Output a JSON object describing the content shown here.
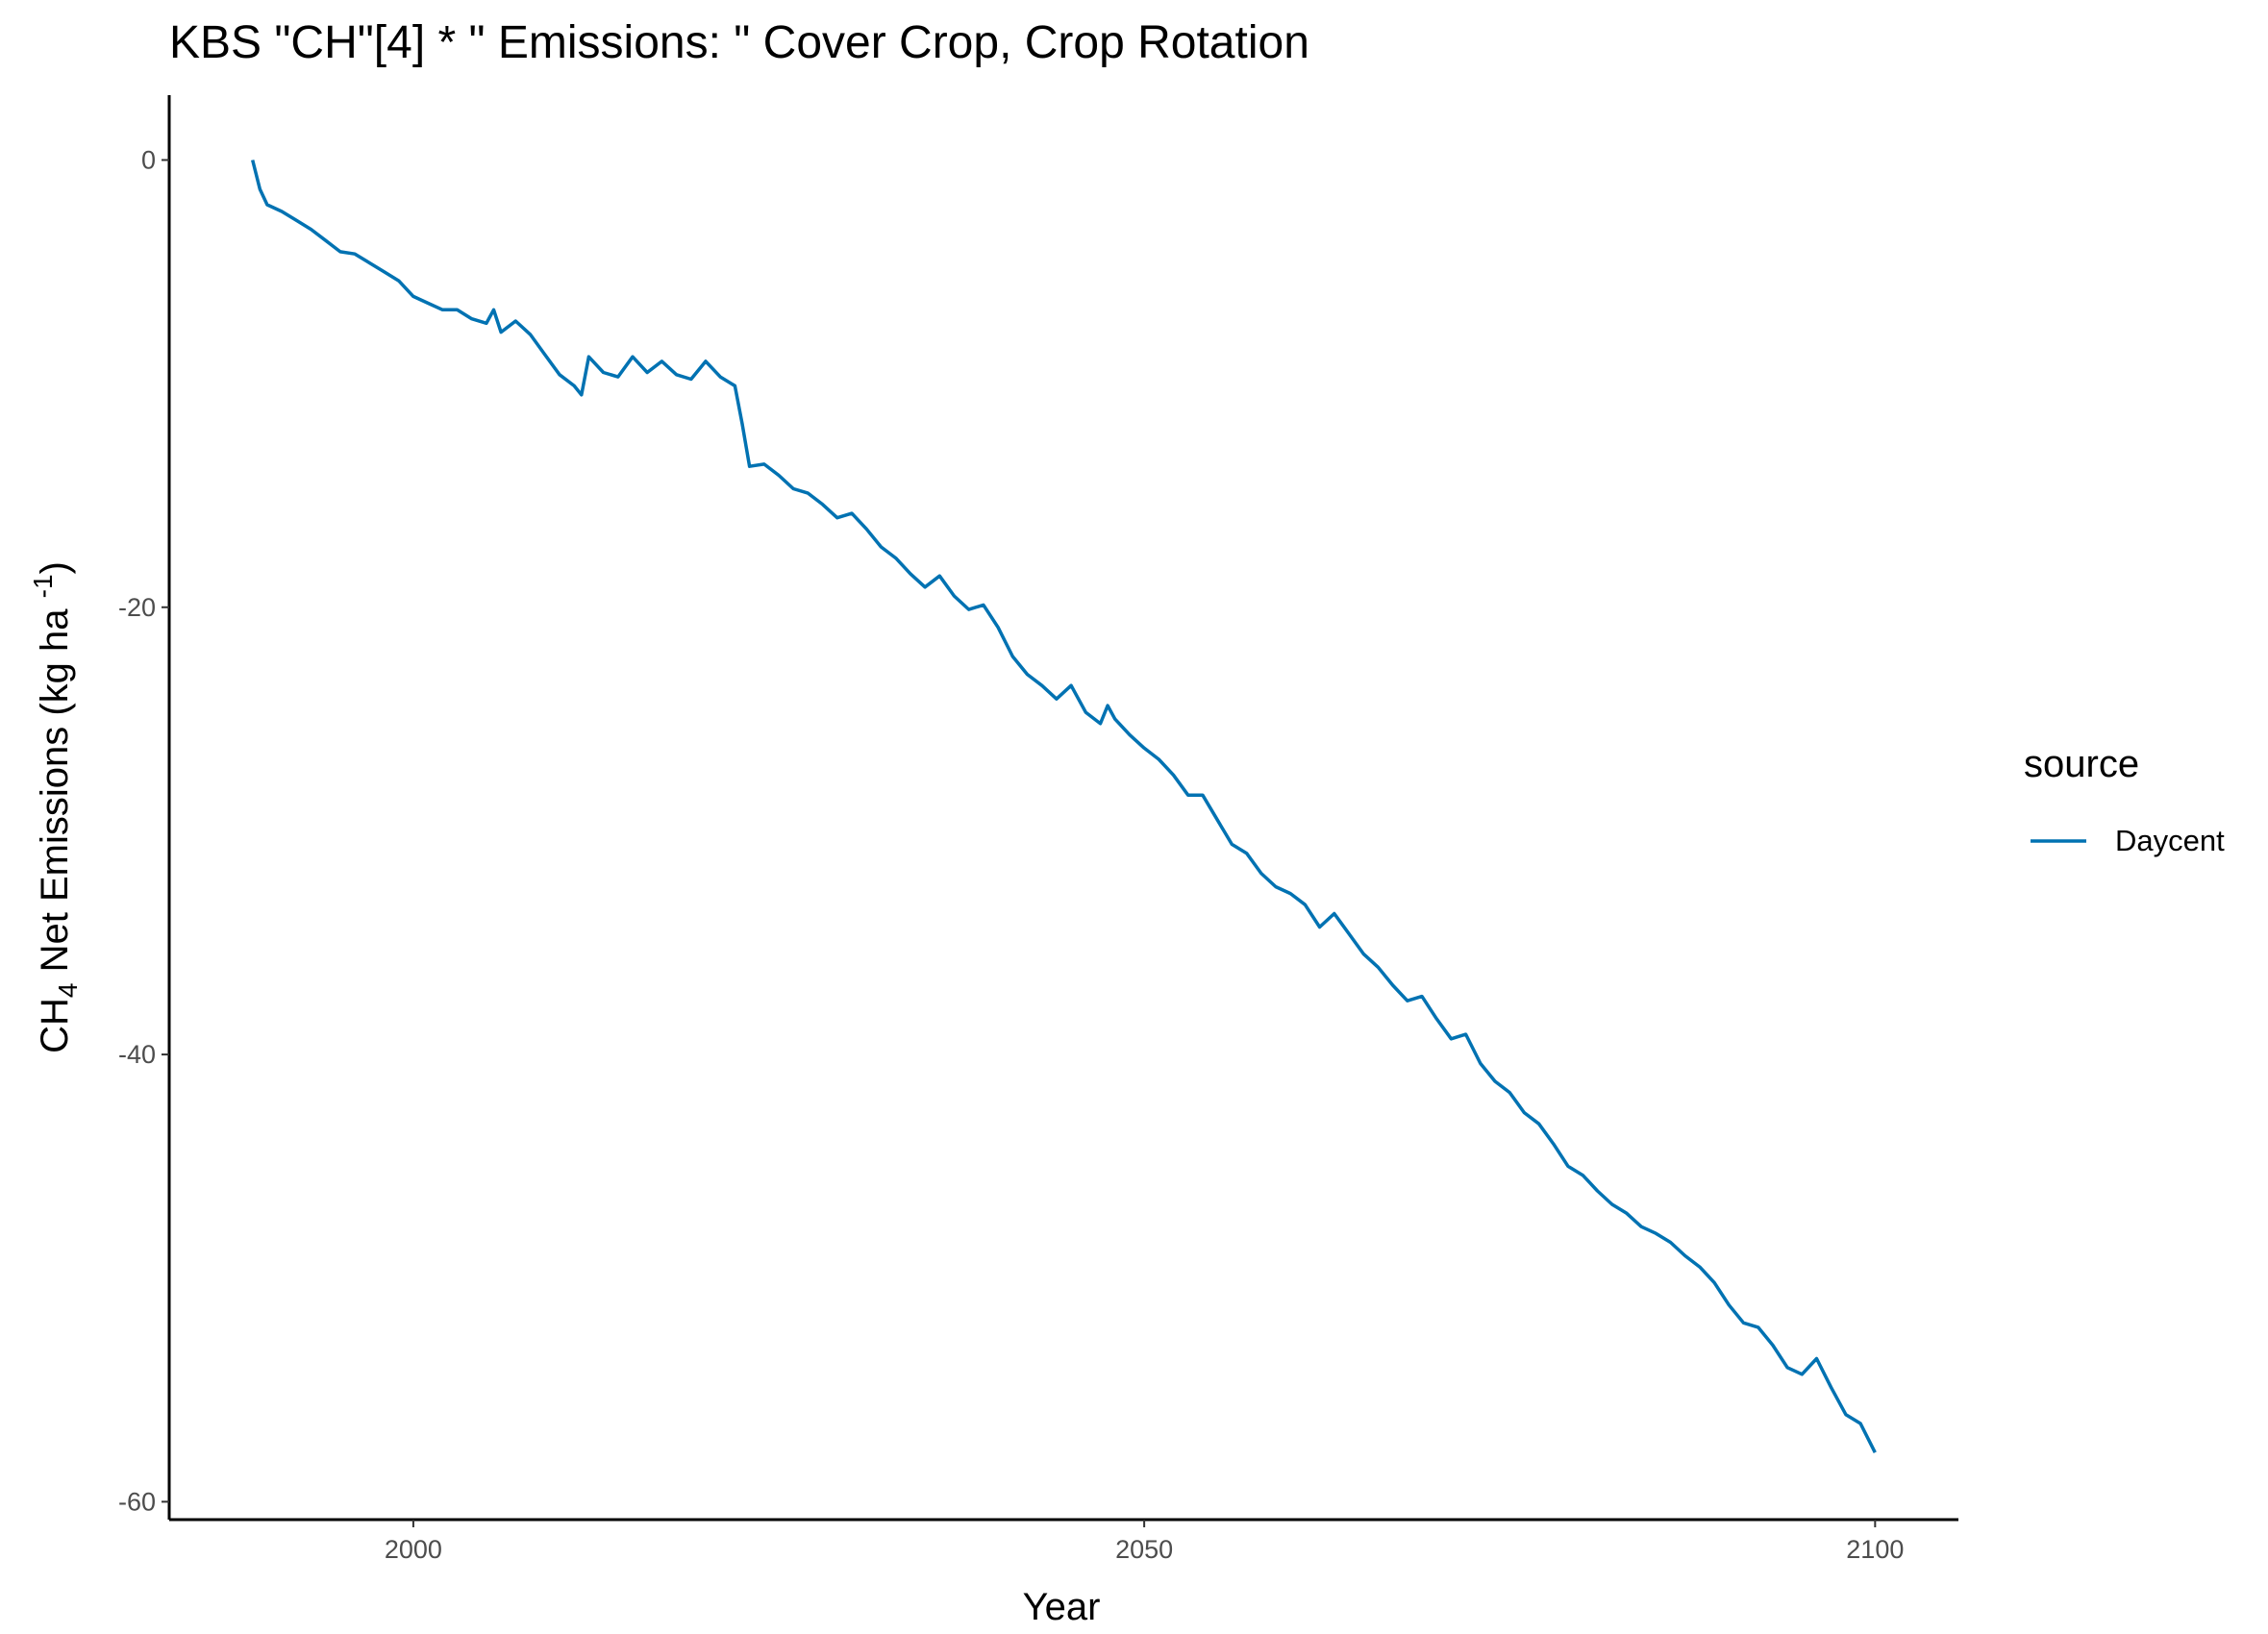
{
  "chart_data": {
    "type": "line",
    "title": "KBS \"CH\"[4] * \" Emissions: \" Cover Crop, Crop Rotation",
    "x_label": "Year",
    "y_label": [
      "CH",
      "4",
      " Net Emissions (kg ha ",
      "-1",
      ")"
    ],
    "legend_title": "source",
    "legend": "right",
    "xlim": [
      1983.3,
      2105.7
    ],
    "ylim": [
      -60.8,
      2.9
    ],
    "xticks": [
      2000,
      2050,
      2100
    ],
    "yticks": [
      0,
      -20,
      -40,
      -60
    ],
    "x": [
      1989,
      1989.5,
      1990,
      1991,
      1992,
      1993,
      1994,
      1995,
      1996,
      1997,
      1998,
      1999,
      2000,
      2001,
      2002,
      2003,
      2004,
      2005,
      2005.5,
      2006,
      2007,
      2008,
      2009,
      2010,
      2011,
      2011.5,
      2012,
      2013,
      2014,
      2015,
      2016,
      2017,
      2018,
      2019,
      2020,
      2021,
      2022,
      2022.5,
      2023,
      2024,
      2025,
      2026,
      2027,
      2028,
      2029,
      2030,
      2031,
      2032,
      2033,
      2034,
      2035,
      2036,
      2037,
      2038,
      2039,
      2040,
      2041,
      2042,
      2043,
      2044,
      2045,
      2046,
      2047,
      2047.5,
      2048,
      2049,
      2050,
      2051,
      2052,
      2053,
      2054,
      2055,
      2056,
      2057,
      2058,
      2059,
      2060,
      2061,
      2062,
      2063,
      2064,
      2065,
      2066,
      2067,
      2068,
      2069,
      2070,
      2071,
      2072,
      2073,
      2074,
      2075,
      2076,
      2077,
      2078,
      2079,
      2080,
      2081,
      2082,
      2083,
      2084,
      2085,
      2086,
      2087,
      2088,
      2089,
      2090,
      2091,
      2092,
      2093,
      2094,
      2095,
      2096,
      2097,
      2098,
      2099,
      2100
    ],
    "series": [
      {
        "name": "Daycent",
        "color": "#0072B2",
        "values": [
          0,
          -1.3,
          -2.0,
          -2.3,
          -2.7,
          -3.1,
          -3.6,
          -4.1,
          -4.2,
          -4.6,
          -5.0,
          -5.4,
          -6.1,
          -6.4,
          -6.7,
          -6.7,
          -7.1,
          -7.3,
          -6.7,
          -7.7,
          -7.2,
          -7.8,
          -8.7,
          -9.6,
          -10.1,
          -10.5,
          -8.8,
          -9.5,
          -9.7,
          -8.8,
          -9.5,
          -9.0,
          -9.6,
          -9.8,
          -9.0,
          -9.7,
          -10.1,
          -11.8,
          -13.7,
          -13.6,
          -14.1,
          -14.7,
          -14.9,
          -15.4,
          -16.0,
          -15.8,
          -16.5,
          -17.3,
          -17.8,
          -18.5,
          -19.1,
          -18.6,
          -19.5,
          -20.1,
          -19.9,
          -20.9,
          -22.2,
          -23.0,
          -23.5,
          -24.1,
          -23.5,
          -24.7,
          -25.2,
          -24.4,
          -25.0,
          -25.7,
          -26.3,
          -26.8,
          -27.5,
          -28.4,
          -28.4,
          -29.5,
          -30.6,
          -31.0,
          -31.9,
          -32.5,
          -32.8,
          -33.3,
          -34.3,
          -33.7,
          -34.6,
          -35.5,
          -36.1,
          -36.9,
          -37.6,
          -37.4,
          -38.4,
          -39.3,
          -39.1,
          -40.4,
          -41.2,
          -41.7,
          -42.6,
          -43.1,
          -44.0,
          -45.0,
          -45.4,
          -46.1,
          -46.7,
          -47.1,
          -47.7,
          -48.0,
          -48.4,
          -49.0,
          -49.5,
          -50.2,
          -51.2,
          -52.0,
          -52.2,
          -53.0,
          -54.0,
          -54.3,
          -53.6,
          -54.9,
          -56.1,
          -56.5,
          -57.8
        ]
      }
    ]
  }
}
